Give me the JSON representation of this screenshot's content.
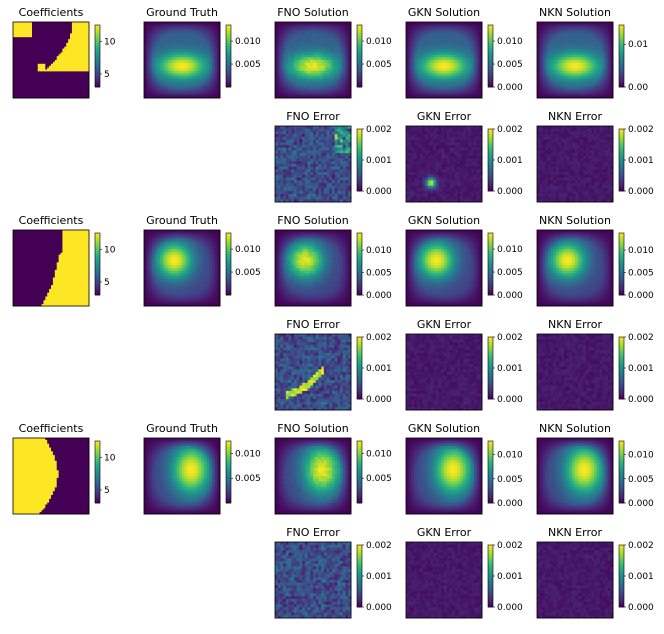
{
  "colors": {
    "colormap": "viridis",
    "coeff_low": "#440154",
    "coeff_high": "#fde725"
  },
  "chart_data": {
    "type": "heatmap",
    "layout": "3 samples x 2 rows x 5 columns",
    "samples": [
      {
        "coeff": {
          "title": "Coefficients",
          "ticks": [
            "10",
            "5"
          ],
          "ticks_v": [
            10,
            5
          ],
          "range": [
            3,
            12.5
          ]
        },
        "gt": {
          "title": "Ground Truth",
          "ticks": [
            "0.010",
            "0.005"
          ],
          "ticks_v": [
            0.01,
            0.005
          ],
          "range": [
            0,
            0.0135
          ]
        },
        "fno": {
          "title": "FNO Solution",
          "ticks": [
            "0.010",
            "0.005"
          ],
          "ticks_v": [
            0.01,
            0.005
          ],
          "range": [
            0,
            0.0135
          ]
        },
        "gkn": {
          "title": "GKN Solution",
          "ticks": [
            "0.010",
            "0.005",
            "0.000"
          ],
          "ticks_v": [
            0.01,
            0.005,
            0.0
          ],
          "range": [
            0,
            0.0135
          ]
        },
        "nkn": {
          "title": "NKN Solution",
          "ticks": [
            "0.01",
            "0.00"
          ],
          "ticks_v": [
            0.01,
            0.0
          ],
          "range": [
            0,
            0.0145
          ]
        },
        "fno_err": {
          "title": "FNO Error",
          "ticks": [
            "0.002",
            "0.001",
            "0.000"
          ],
          "ticks_v": [
            0.002,
            0.001,
            0.0
          ],
          "range": [
            0,
            0.002
          ]
        },
        "gkn_err": {
          "title": "GKN Error",
          "ticks": [
            "0.002",
            "0.001",
            "0.000"
          ],
          "ticks_v": [
            0.002,
            0.001,
            0.0
          ],
          "range": [
            0,
            0.002
          ]
        },
        "nkn_err": {
          "title": "NKN Error",
          "ticks": [
            "0.002",
            "0.001",
            "0.000"
          ],
          "ticks_v": [
            0.002,
            0.001,
            0.0
          ],
          "range": [
            0,
            0.002
          ]
        }
      },
      {
        "coeff": {
          "title": "Coefficients",
          "ticks": [
            "10",
            "5"
          ],
          "ticks_v": [
            10,
            5
          ],
          "range": [
            3,
            12.5
          ]
        },
        "gt": {
          "title": "Ground Truth",
          "ticks": [
            "0.010",
            "0.005"
          ],
          "ticks_v": [
            0.01,
            0.005
          ],
          "range": [
            0,
            0.0135
          ]
        },
        "fno": {
          "title": "FNO Solution",
          "ticks": [
            "0.010",
            "0.005",
            "0.000"
          ],
          "ticks_v": [
            0.01,
            0.005,
            0.0
          ],
          "range": [
            0,
            0.0138
          ]
        },
        "gkn": {
          "title": "GKN Solution",
          "ticks": [
            "0.010",
            "0.005",
            "0.000"
          ],
          "ticks_v": [
            0.01,
            0.005,
            0.0
          ],
          "range": [
            0,
            0.0135
          ]
        },
        "nkn": {
          "title": "NKN Solution",
          "ticks": [
            "0.010",
            "0.005",
            "0.000"
          ],
          "ticks_v": [
            0.01,
            0.005,
            0.0
          ],
          "range": [
            0,
            0.0138
          ]
        },
        "fno_err": {
          "title": "FNO Error",
          "ticks": [
            "0.002",
            "0.001",
            "0.000"
          ],
          "ticks_v": [
            0.002,
            0.001,
            0.0
          ],
          "range": [
            0,
            0.002
          ]
        },
        "gkn_err": {
          "title": "GKN Error",
          "ticks": [
            "0.002",
            "0.001",
            "0.000"
          ],
          "ticks_v": [
            0.002,
            0.001,
            0.0
          ],
          "range": [
            0,
            0.002
          ]
        },
        "nkn_err": {
          "title": "NKN Error",
          "ticks": [
            "0.002",
            "0.001",
            "0.000"
          ],
          "ticks_v": [
            0.002,
            0.001,
            0.0
          ],
          "range": [
            0,
            0.002
          ]
        }
      },
      {
        "coeff": {
          "title": "Coefficients",
          "ticks": [
            "10",
            "5"
          ],
          "ticks_v": [
            10,
            5
          ],
          "range": [
            3,
            12.5
          ]
        },
        "gt": {
          "title": "Ground Truth",
          "ticks": [
            "0.010",
            "0.005"
          ],
          "ticks_v": [
            0.01,
            0.005
          ],
          "range": [
            0,
            0.0125
          ]
        },
        "fno": {
          "title": "FNO Solution",
          "ticks": [
            "0.010",
            "0.005"
          ],
          "ticks_v": [
            0.01,
            0.005
          ],
          "range": [
            0,
            0.0125
          ]
        },
        "gkn": {
          "title": "GKN Solution",
          "ticks": [
            "0.010",
            "0.005",
            "0.000"
          ],
          "ticks_v": [
            0.01,
            0.005,
            0.0
          ],
          "range": [
            0,
            0.0128
          ]
        },
        "nkn": {
          "title": "NKN Solution",
          "ticks": [
            "0.010",
            "0.005",
            "0.000"
          ],
          "ticks_v": [
            0.01,
            0.005,
            0.0
          ],
          "range": [
            0,
            0.0128
          ]
        },
        "fno_err": {
          "title": "FNO Error",
          "ticks": [
            "0.002",
            "0.001",
            "0.000"
          ],
          "ticks_v": [
            0.002,
            0.001,
            0.0
          ],
          "range": [
            0,
            0.002
          ]
        },
        "gkn_err": {
          "title": "GKN Error",
          "ticks": [
            "0.002",
            "0.001",
            "0.000"
          ],
          "ticks_v": [
            0.002,
            0.001,
            0.0
          ],
          "range": [
            0,
            0.002
          ]
        },
        "nkn_err": {
          "title": "NKN Error",
          "ticks": [
            "0.002",
            "0.001",
            "0.000"
          ],
          "ticks_v": [
            0.002,
            0.001,
            0.0
          ],
          "range": [
            0,
            0.002
          ]
        }
      }
    ]
  }
}
